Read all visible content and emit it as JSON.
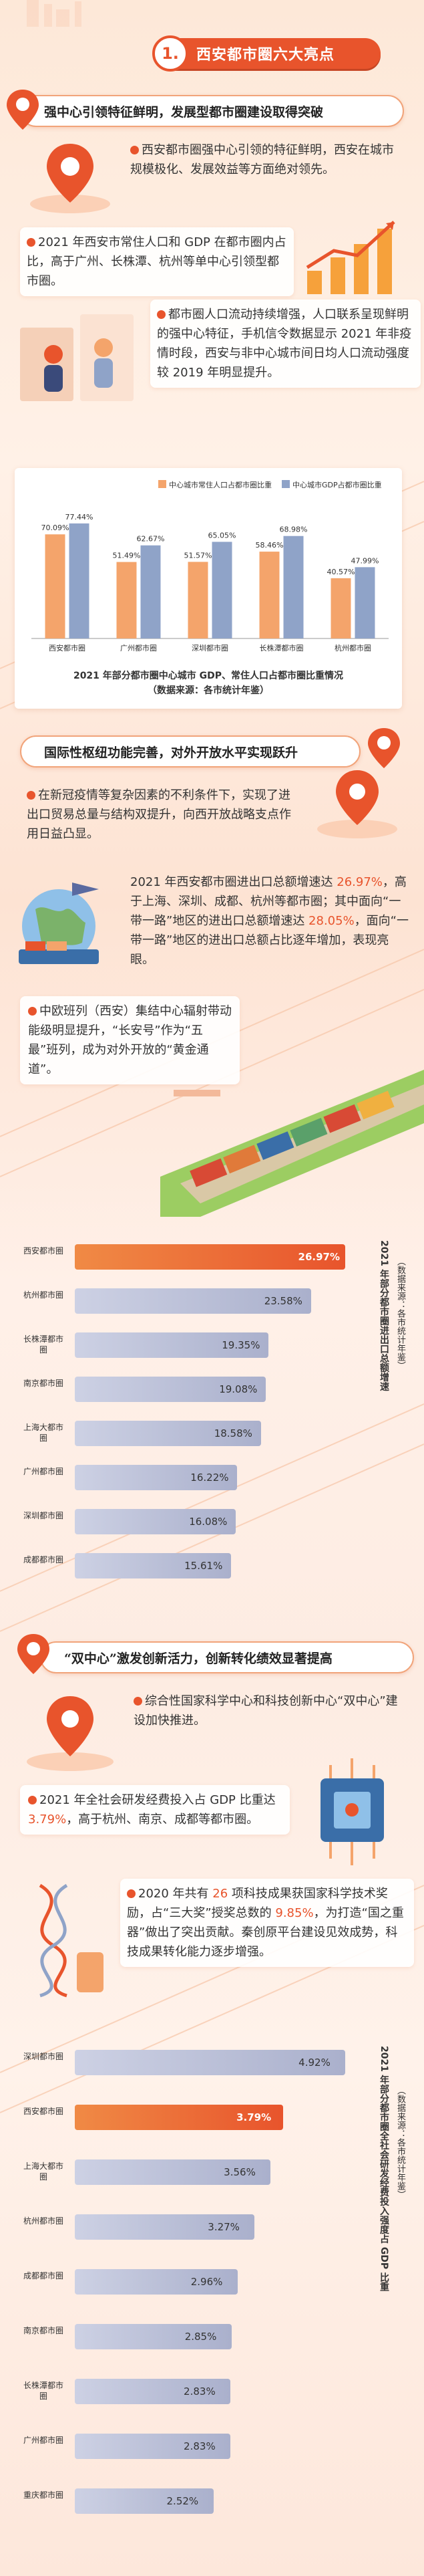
{
  "header": {
    "number": "1.",
    "title": "西安都市圈六大亮点"
  },
  "section1": {
    "banner": "强中心引领特征鲜明，发展型都市圈建设取得突破",
    "p1": "西安都市圈强中心引领的特征鲜明，西安在城市规模极化、发展效益等方面绝对领先。",
    "p2": "2021 年西安市常住人口和 GDP 在都市圈内占比，高于广州、长株潭、杭州等单中心引领型都市圈。",
    "p3": "都市圈人口流动持续增强，人口联系呈现鲜明的强中心特征，手机信令数据显示 2021 年非疫情时段，西安与非中心城市间日均人口流动强度较 2019 年明显提升。"
  },
  "chart_data": [
    {
      "type": "bar",
      "title": "2021 年部分都市圈中心城市 GDP、常住人口占都市圈比重情况",
      "source": "（数据来源：各市统计年鉴）",
      "categories": [
        "西安都市圈",
        "广州都市圈",
        "深圳都市圈",
        "长株潭都市圈",
        "杭州都市圈"
      ],
      "ylim": [
        0,
        90
      ],
      "series": [
        {
          "name": "中心城市常住人口占都市圈比重",
          "color": "#f4a46b",
          "values": [
            70.09,
            51.49,
            51.57,
            58.46,
            40.57
          ]
        },
        {
          "name": "中心城市GDP占都市圈比重",
          "color": "#8fa3c8",
          "values": [
            77.44,
            62.67,
            65.05,
            68.98,
            47.99
          ]
        }
      ],
      "value_labels": [
        [
          "70.09%",
          "51.49%",
          "51.57%",
          "58.46%",
          "40.57%"
        ],
        [
          "77.44%",
          "62.67%",
          "65.05%",
          "68.98%",
          "47.99%"
        ]
      ]
    },
    {
      "type": "bar",
      "orientation": "horizontal",
      "title": "2021 年部分都市圈进出口总额增速",
      "source": "（数据来源：各市统计年鉴）",
      "categories": [
        "西安都市圈",
        "杭州都市圈",
        "长株潭都市圈",
        "南京都市圈",
        "上海大都市圈",
        "广州都市圈",
        "深圳都市圈",
        "成都都市圈"
      ],
      "values": [
        26.97,
        23.58,
        19.35,
        19.08,
        18.58,
        16.22,
        16.08,
        15.61
      ],
      "value_labels": [
        "26.97%",
        "23.58%",
        "19.35%",
        "19.08%",
        "18.58%",
        "16.22%",
        "16.08%",
        "15.61%"
      ],
      "highlight": 0,
      "xlim": [
        0,
        28
      ]
    },
    {
      "type": "bar",
      "orientation": "horizontal",
      "title": "2021 年部分都市圈全社会研发经费投入强度占 GDP 比重",
      "source": "（数据来源：各市统计年鉴）",
      "categories": [
        "深圳都市圈",
        "西安都市圈",
        "上海大都市圈",
        "杭州都市圈",
        "成都都市圈",
        "南京都市圈",
        "长株潭都市圈",
        "广州都市圈",
        "重庆都市圈"
      ],
      "values": [
        4.92,
        3.79,
        3.56,
        3.27,
        2.96,
        2.85,
        2.83,
        2.83,
        2.52
      ],
      "value_labels": [
        "4.92%",
        "3.79%",
        "3.56%",
        "3.27%",
        "2.96%",
        "2.85%",
        "2.83%",
        "2.83%",
        "2.52%"
      ],
      "highlight": 1,
      "xlim": [
        0,
        5.1
      ]
    }
  ],
  "section2": {
    "banner": "国际性枢纽功能完善，对外开放水平实现跃升",
    "p1": "在新冠疫情等复杂因素的不利条件下，实现了进出口贸易总量与结构双提升，向西开放战略支点作用日益凸显。",
    "p2": {
      "a": "2021 年西安都市圈进出口总额增速达 ",
      "b": "26.97%",
      "c": "，高于上海、深圳、成都、杭州等都市圈；其中面向“一带一路”地区的进出口总额增速达 ",
      "d": "28.05%",
      "e": "，面向“一带一路”地区的进出口总额占比逐年增加，表现亮眼。"
    },
    "p3": "中欧班列（西安）集结中心辐射带动能级明显提升，“长安号”作为“五最”班列，成为对外开放的“黄金通道”。"
  },
  "section3": {
    "banner": "“双中心”激发创新活力，创新转化绩效显著提高",
    "p1": "综合性国家科学中心和科技创新中心“双中心”建设加快推进。",
    "p2": {
      "a": "2021 年全社会研发经费投入占 GDP 比重达 ",
      "b": "3.79%",
      "c": "，高于杭州、南京、成都等都市圈。"
    },
    "p3": {
      "a": "2020 年共有 ",
      "b": "26",
      "c": " 项科技成果获国家科学技术奖励，占“三大奖”授奖总数的 ",
      "d": "9.85%",
      "e": "，为打造“国之重器”做出了突出贡献。秦创原平台建设见效成势，科技成果转化能力逐步增强。"
    }
  }
}
